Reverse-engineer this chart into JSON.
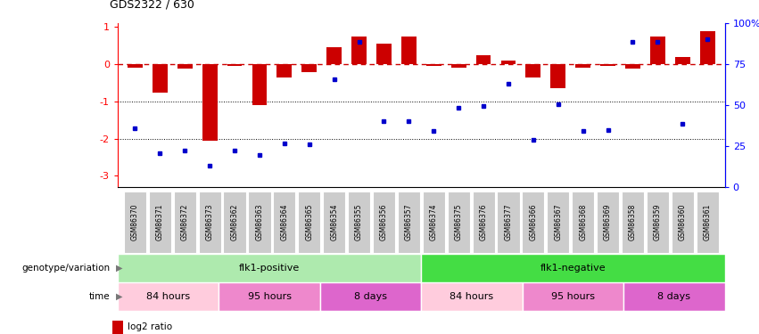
{
  "title": "GDS2322 / 630",
  "samples": [
    "GSM86370",
    "GSM86371",
    "GSM86372",
    "GSM86373",
    "GSM86362",
    "GSM86363",
    "GSM86364",
    "GSM86365",
    "GSM86354",
    "GSM86355",
    "GSM86356",
    "GSM86357",
    "GSM86374",
    "GSM86375",
    "GSM86376",
    "GSM86377",
    "GSM86366",
    "GSM86367",
    "GSM86368",
    "GSM86369",
    "GSM86358",
    "GSM86359",
    "GSM86360",
    "GSM86361"
  ],
  "log2_ratio": [
    -0.08,
    -0.75,
    -0.12,
    -2.05,
    -0.05,
    -1.1,
    -0.35,
    -0.2,
    0.45,
    0.75,
    0.55,
    0.75,
    -0.05,
    -0.08,
    0.25,
    0.1,
    -0.35,
    -0.65,
    -0.08,
    -0.05,
    -0.12,
    0.75,
    0.2,
    0.9
  ],
  "percentile_rank": [
    32,
    15,
    17,
    7,
    17,
    14,
    22,
    21,
    65,
    90,
    37,
    37,
    30,
    46,
    47,
    62,
    24,
    48,
    30,
    31,
    90,
    90,
    35,
    92
  ],
  "genotype_groups": [
    {
      "label": "flk1-positive",
      "start": 0,
      "end": 12,
      "color": "#AEEAAE"
    },
    {
      "label": "flk1-negative",
      "start": 12,
      "end": 24,
      "color": "#44DD44"
    }
  ],
  "time_groups": [
    {
      "label": "84 hours",
      "start": 0,
      "end": 4,
      "color": "#FFCCDD"
    },
    {
      "label": "95 hours",
      "start": 4,
      "end": 8,
      "color": "#EE88CC"
    },
    {
      "label": "8 days",
      "start": 8,
      "end": 12,
      "color": "#DD66CC"
    },
    {
      "label": "84 hours",
      "start": 12,
      "end": 16,
      "color": "#FFCCDD"
    },
    {
      "label": "95 hours",
      "start": 16,
      "end": 20,
      "color": "#EE88CC"
    },
    {
      "label": "8 days",
      "start": 20,
      "end": 24,
      "color": "#DD66CC"
    }
  ],
  "bar_color": "#CC0000",
  "dot_color": "#0000CC",
  "ylim_left": [
    -3.3,
    1.1
  ],
  "ylim_right": [
    0,
    100
  ],
  "hlines": [
    -1.0,
    -2.0
  ],
  "hline_zero_color": "#CC0000",
  "background_color": "#ffffff",
  "tick_bg_color": "#CCCCCC"
}
